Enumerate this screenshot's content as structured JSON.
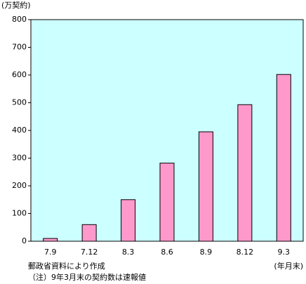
{
  "chart_data": {
    "type": "bar",
    "y_label": "(万契約)",
    "x_label": "(年月末)",
    "notes": [
      "郵政省資料により作成",
      "（注）9年3月末の契約数は速報値"
    ],
    "categories": [
      "7.9",
      "7.12",
      "8.3",
      "8.6",
      "8.9",
      "8.12",
      "9.3"
    ],
    "values": [
      10,
      60,
      150,
      282,
      395,
      493,
      602
    ],
    "color": "#ff99cc",
    "plot_background": "#ccffff",
    "ylim": [
      0,
      800
    ],
    "yticks": [
      0,
      100,
      200,
      300,
      400,
      500,
      600,
      700,
      800
    ]
  }
}
